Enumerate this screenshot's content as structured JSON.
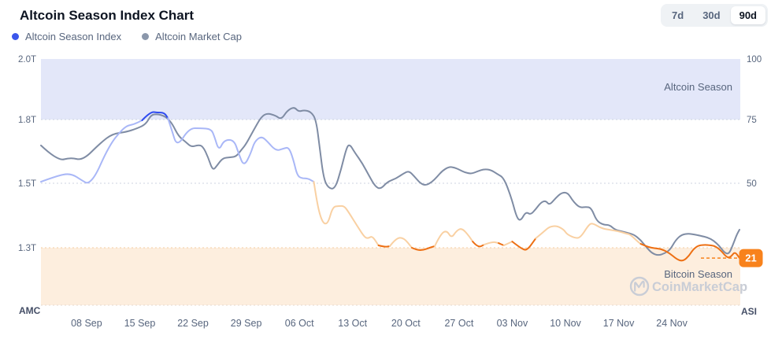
{
  "header": {
    "title": "Altcoin Season Index Chart",
    "range_buttons": [
      {
        "label": "7d",
        "active": false
      },
      {
        "label": "30d",
        "active": false
      },
      {
        "label": "90d",
        "active": true
      }
    ]
  },
  "legend": [
    {
      "label": "Altcoin Season Index",
      "color": "#3b56eb"
    },
    {
      "label": "Altcoin Market Cap",
      "color": "#8b97ab"
    }
  ],
  "watermark": {
    "text": "CoinMarketCap",
    "color": "#c9cdd6"
  },
  "chart_data": {
    "type": "line",
    "x_axis": {
      "tick_days": [
        6,
        13,
        20,
        27,
        34,
        41,
        48,
        55,
        62,
        69,
        76,
        83
      ],
      "tick_labels": [
        "08 Sep",
        "15 Sep",
        "22 Sep",
        "29 Sep",
        "06 Oct",
        "13 Oct",
        "20 Oct",
        "27 Oct",
        "03 Nov",
        "10 Nov",
        "17 Nov",
        "24 Nov"
      ],
      "day_span": [
        0,
        92
      ]
    },
    "left_axis": {
      "corner_label": "AMC",
      "ticks": [
        {
          "label": "2.0T",
          "value": 2.0
        },
        {
          "label": "1.8T",
          "value": 1.8
        },
        {
          "label": "1.5T",
          "value": 1.5
        },
        {
          "label": "1.3T",
          "value": 1.3
        }
      ]
    },
    "right_axis": {
      "corner_label": "ASI",
      "range": [
        0,
        100
      ],
      "ticks": [
        {
          "label": "100",
          "value": 100
        },
        {
          "label": "75",
          "value": 75
        },
        {
          "label": "50",
          "value": 50
        }
      ]
    },
    "bands": [
      {
        "label": "Altcoin Season",
        "range": [
          75,
          100
        ],
        "color": "#e3e7f9",
        "label_color": "#58667e"
      },
      {
        "label": "Bitcoin Season",
        "range": [
          0,
          25
        ],
        "color": "#fdeede",
        "label_color": "#58667e"
      }
    ],
    "grid": {
      "dotted": true,
      "neutral_line_values": [
        75,
        50
      ],
      "band_edge_values": [
        25
      ]
    },
    "current_value": {
      "value": 21,
      "badge_color": "#f8821c",
      "text_color": "#ffffff"
    },
    "series": [
      {
        "name": "Altcoin Market Cap",
        "axis": "left",
        "unit": "T",
        "color": "#7f8ca4",
        "points": [
          [
            0,
            1.678
          ],
          [
            2.2,
            1.604
          ],
          [
            3.9,
            1.622
          ],
          [
            5.5,
            1.607
          ],
          [
            7.8,
            1.689
          ],
          [
            9.4,
            1.733
          ],
          [
            11.2,
            1.741
          ],
          [
            12.7,
            1.759
          ],
          [
            13.8,
            1.778
          ],
          [
            14.5,
            1.816
          ],
          [
            15.3,
            1.818
          ],
          [
            16.1,
            1.813
          ],
          [
            16.7,
            1.803
          ],
          [
            17.3,
            1.778
          ],
          [
            18.1,
            1.722
          ],
          [
            19,
            1.696
          ],
          [
            19.8,
            1.67
          ],
          [
            20.7,
            1.681
          ],
          [
            21.3,
            1.674
          ],
          [
            22,
            1.622
          ],
          [
            22.6,
            1.559
          ],
          [
            23.2,
            1.585
          ],
          [
            23.9,
            1.619
          ],
          [
            24.9,
            1.622
          ],
          [
            25.7,
            1.626
          ],
          [
            26.4,
            1.659
          ],
          [
            27,
            1.685
          ],
          [
            28,
            1.752
          ],
          [
            29,
            1.81
          ],
          [
            29.8,
            1.821
          ],
          [
            30.9,
            1.813
          ],
          [
            31.6,
            1.8
          ],
          [
            32.4,
            1.829
          ],
          [
            33.3,
            1.842
          ],
          [
            33.9,
            1.826
          ],
          [
            34.6,
            1.831
          ],
          [
            35.5,
            1.826
          ],
          [
            36.2,
            1.8
          ],
          [
            36.7,
            1.659
          ],
          [
            37.2,
            1.521
          ],
          [
            37.8,
            1.485
          ],
          [
            38.7,
            1.482
          ],
          [
            39.5,
            1.567
          ],
          [
            40.2,
            1.667
          ],
          [
            40.6,
            1.685
          ],
          [
            41.3,
            1.644
          ],
          [
            42.3,
            1.593
          ],
          [
            43.2,
            1.533
          ],
          [
            44,
            1.489
          ],
          [
            44.7,
            1.482
          ],
          [
            45.6,
            1.507
          ],
          [
            46.7,
            1.522
          ],
          [
            47.6,
            1.544
          ],
          [
            48.4,
            1.559
          ],
          [
            49.1,
            1.533
          ],
          [
            49.9,
            1.5
          ],
          [
            50.6,
            1.493
          ],
          [
            51.4,
            1.505
          ],
          [
            52.1,
            1.53
          ],
          [
            52.8,
            1.559
          ],
          [
            53.7,
            1.578
          ],
          [
            54.4,
            1.574
          ],
          [
            55.1,
            1.563
          ],
          [
            55.7,
            1.552
          ],
          [
            56.6,
            1.544
          ],
          [
            57.4,
            1.556
          ],
          [
            58.3,
            1.567
          ],
          [
            59.2,
            1.563
          ],
          [
            60,
            1.544
          ],
          [
            60.9,
            1.526
          ],
          [
            61.9,
            1.454
          ],
          [
            62.6,
            1.393
          ],
          [
            63.1,
            1.383
          ],
          [
            63.8,
            1.412
          ],
          [
            64.4,
            1.402
          ],
          [
            65.1,
            1.42
          ],
          [
            65.8,
            1.441
          ],
          [
            66.4,
            1.446
          ],
          [
            66.9,
            1.432
          ],
          [
            67.7,
            1.454
          ],
          [
            68.5,
            1.471
          ],
          [
            69.3,
            1.471
          ],
          [
            70,
            1.444
          ],
          [
            70.9,
            1.424
          ],
          [
            71.7,
            1.427
          ],
          [
            72.4,
            1.424
          ],
          [
            73.1,
            1.383
          ],
          [
            74,
            1.371
          ],
          [
            74.8,
            1.371
          ],
          [
            75.5,
            1.356
          ],
          [
            76.4,
            1.351
          ],
          [
            77.2,
            1.346
          ],
          [
            78,
            1.341
          ],
          [
            78.9,
            1.324
          ],
          [
            79.7,
            1.3
          ],
          [
            80.4,
            1.283
          ],
          [
            81.2,
            1.276
          ],
          [
            82.1,
            1.283
          ],
          [
            82.8,
            1.295
          ],
          [
            83.5,
            1.324
          ],
          [
            84.3,
            1.341
          ],
          [
            85.2,
            1.344
          ],
          [
            86,
            1.341
          ],
          [
            86.8,
            1.337
          ],
          [
            87.7,
            1.332
          ],
          [
            88.5,
            1.322
          ],
          [
            89.2,
            1.307
          ],
          [
            89.9,
            1.285
          ],
          [
            90.5,
            1.28
          ],
          [
            91,
            1.307
          ],
          [
            91.5,
            1.339
          ],
          [
            91.9,
            1.356
          ]
        ]
      },
      {
        "name": "Altcoin Season Index",
        "axis": "right",
        "colors": {
          "altcoin_season": "#2e4bf0",
          "neutral_high": "#a9b7f7",
          "neutral_low": "#f9d0a2",
          "bitcoin_season": "#ed6f13"
        },
        "points": [
          [
            0,
            50.6
          ],
          [
            2,
            52.8
          ],
          [
            3.9,
            54
          ],
          [
            5.5,
            50.9
          ],
          [
            6.2,
            49.8
          ],
          [
            7.2,
            53.1
          ],
          [
            8.4,
            61.1
          ],
          [
            9.4,
            66.4
          ],
          [
            10.2,
            69.4
          ],
          [
            11.2,
            72.5
          ],
          [
            12.2,
            73.1
          ],
          [
            13.3,
            74.7
          ],
          [
            13.8,
            76.3
          ],
          [
            14.6,
            78.2
          ],
          [
            15.3,
            77.9
          ],
          [
            16.2,
            77.9
          ],
          [
            16.7,
            75.6
          ],
          [
            17.2,
            71
          ],
          [
            17.9,
            64.2
          ],
          [
            19.5,
            71.6
          ],
          [
            21,
            71.6
          ],
          [
            22.4,
            71.3
          ],
          [
            22.8,
            68.5
          ],
          [
            23.4,
            62.7
          ],
          [
            24.1,
            67
          ],
          [
            25.4,
            67
          ],
          [
            26,
            61.7
          ],
          [
            26.7,
            56.5
          ],
          [
            27.6,
            61.7
          ],
          [
            28.1,
            66.4
          ],
          [
            29,
            68.5
          ],
          [
            29.8,
            66.4
          ],
          [
            30.9,
            62.7
          ],
          [
            31.9,
            63.6
          ],
          [
            32.6,
            64.2
          ],
          [
            33.2,
            59.3
          ],
          [
            33.7,
            53.1
          ],
          [
            34.3,
            51.9
          ],
          [
            35.1,
            51.9
          ],
          [
            35.9,
            50.6
          ],
          [
            36.3,
            42.7
          ],
          [
            36.8,
            36.6
          ],
          [
            37.3,
            34.1
          ],
          [
            37.8,
            34.8
          ],
          [
            38.4,
            40.9
          ],
          [
            39.2,
            41.2
          ],
          [
            39.9,
            41.2
          ],
          [
            40.5,
            38.7
          ],
          [
            41.6,
            33.5
          ],
          [
            42.6,
            28.9
          ],
          [
            43.1,
            28.7
          ],
          [
            43.6,
            29.6
          ],
          [
            44.4,
            25.9
          ],
          [
            45.2,
            25.3
          ],
          [
            45.9,
            25.6
          ],
          [
            46.7,
            28.7
          ],
          [
            47.7,
            29
          ],
          [
            48.8,
            25
          ],
          [
            49.5,
            24.1
          ],
          [
            50.3,
            24.1
          ],
          [
            51.1,
            25
          ],
          [
            51.8,
            25.6
          ],
          [
            52.6,
            30.5
          ],
          [
            53.4,
            31.7
          ],
          [
            54,
            28.7
          ],
          [
            54.7,
            31.7
          ],
          [
            55.4,
            32.6
          ],
          [
            56.3,
            29.6
          ],
          [
            56.8,
            27.4
          ],
          [
            57.5,
            25
          ],
          [
            58.3,
            26.2
          ],
          [
            59.4,
            27.4
          ],
          [
            60.2,
            26.8
          ],
          [
            60.9,
            25.9
          ],
          [
            62,
            27.4
          ],
          [
            63.3,
            24.4
          ],
          [
            64,
            24.1
          ],
          [
            65.1,
            28.7
          ],
          [
            66.1,
            31.1
          ],
          [
            66.9,
            33.2
          ],
          [
            67.9,
            33.5
          ],
          [
            68.8,
            32
          ],
          [
            69.2,
            30.2
          ],
          [
            70.3,
            28.7
          ],
          [
            71,
            29
          ],
          [
            72.1,
            34.1
          ],
          [
            72.6,
            34.5
          ],
          [
            73.7,
            32.6
          ],
          [
            74.7,
            32
          ],
          [
            76,
            31.4
          ],
          [
            77,
            30.5
          ],
          [
            77.5,
            30.2
          ],
          [
            78.5,
            27.4
          ],
          [
            78.9,
            26.5
          ],
          [
            79.6,
            25.6
          ],
          [
            80.3,
            25
          ],
          [
            81.1,
            24.7
          ],
          [
            81.7,
            24.4
          ],
          [
            82.7,
            22.9
          ],
          [
            83.7,
            20.4
          ],
          [
            84.5,
            19.8
          ],
          [
            85.3,
            22
          ],
          [
            85.8,
            24.4
          ],
          [
            86.5,
            25.9
          ],
          [
            87.4,
            26.2
          ],
          [
            88.2,
            25.9
          ],
          [
            88.7,
            25.6
          ],
          [
            89.4,
            24.1
          ],
          [
            90.3,
            21
          ],
          [
            90.8,
            21.6
          ],
          [
            91.3,
            23.5
          ],
          [
            91.9,
            21
          ]
        ]
      }
    ]
  }
}
